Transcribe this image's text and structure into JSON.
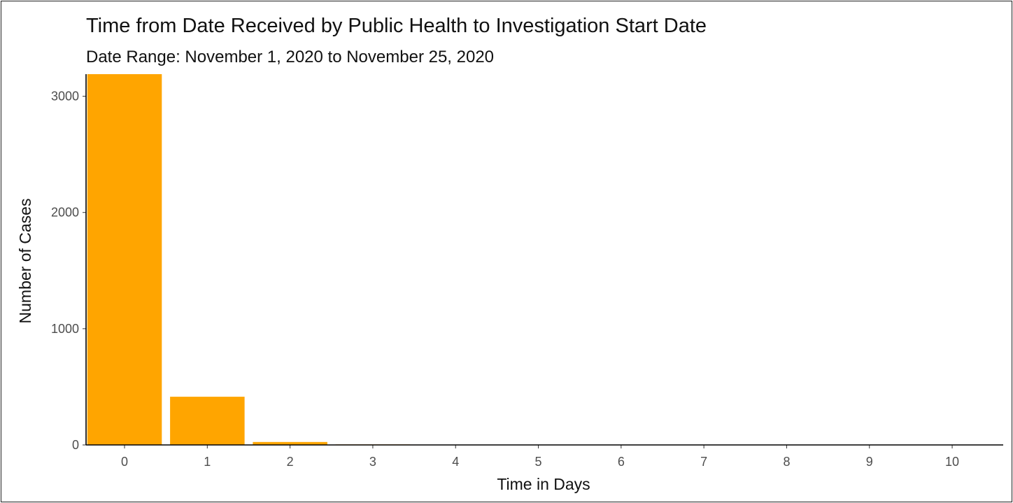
{
  "chart_data": {
    "type": "bar",
    "title": "Time from Date Received by Public Health to Investigation Start Date",
    "subtitle": "Date Range: November 1, 2020 to November 25, 2020",
    "xlabel": "Time in Days",
    "ylabel": "Number of Cases",
    "categories": [
      "0",
      "1",
      "2",
      "3",
      "4",
      "5",
      "6",
      "7",
      "8",
      "9",
      "10"
    ],
    "values": [
      3190,
      415,
      25,
      4,
      2,
      1,
      1,
      1,
      0,
      0,
      1
    ],
    "ylim": [
      0,
      3190
    ],
    "yticks": [
      0,
      1000,
      2000,
      3000
    ],
    "ytick_labels": [
      "0",
      "1000",
      "2000",
      "3000"
    ],
    "bar_color": "#FFA500",
    "grid": false,
    "legend": "none"
  }
}
